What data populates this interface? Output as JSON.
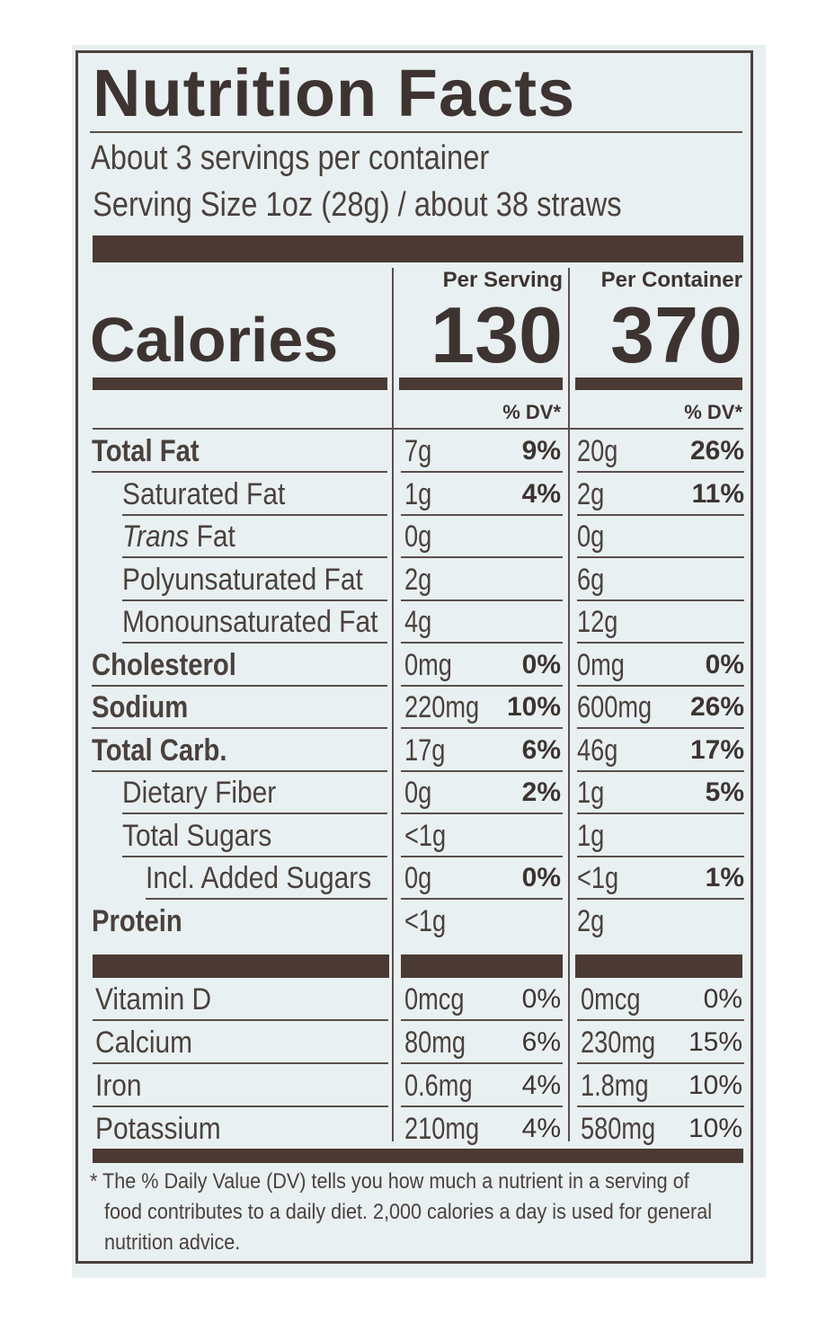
{
  "title": "Nutrition Facts",
  "servings_per_container": "About 3 servings per container",
  "serving_size": "Serving Size 1oz (28g) / about 38 straws",
  "columns": {
    "per_serving": "Per Serving",
    "per_container": "Per Container"
  },
  "calories": {
    "label": "Calories",
    "per_serving": "130",
    "per_container": "370"
  },
  "dv_header": "% DV*",
  "nutrients": [
    {
      "name": "Total Fat",
      "bold": true,
      "serv_amt": "7g",
      "serv_dv": "9%",
      "cont_amt": "20g",
      "cont_dv": "26%"
    },
    {
      "name": "Saturated Fat",
      "serv_amt": "1g",
      "serv_dv": "4%",
      "cont_amt": "2g",
      "cont_dv": "11%"
    },
    {
      "name": "Trans",
      "name_suffix": " Fat",
      "serv_amt": "0g",
      "serv_dv": "",
      "cont_amt": "0g",
      "cont_dv": ""
    },
    {
      "name": "Polyunsaturated Fat",
      "serv_amt": "2g",
      "serv_dv": "",
      "cont_amt": "6g",
      "cont_dv": ""
    },
    {
      "name": "Monounsaturated Fat",
      "serv_amt": "4g",
      "serv_dv": "",
      "cont_amt": "12g",
      "cont_dv": ""
    },
    {
      "name": "Cholesterol",
      "bold": true,
      "serv_amt": "0mg",
      "serv_dv": "0%",
      "cont_amt": "0mg",
      "cont_dv": "0%"
    },
    {
      "name": "Sodium",
      "bold": true,
      "serv_amt": "220mg",
      "serv_dv": "10%",
      "cont_amt": "600mg",
      "cont_dv": "26%"
    },
    {
      "name": "Total Carb.",
      "bold": true,
      "serv_amt": "17g",
      "serv_dv": "6%",
      "cont_amt": "46g",
      "cont_dv": "17%"
    },
    {
      "name": "Dietary Fiber",
      "serv_amt": "0g",
      "serv_dv": "2%",
      "cont_amt": "1g",
      "cont_dv": "5%"
    },
    {
      "name": "Total Sugars",
      "serv_amt": "<1g",
      "serv_dv": "",
      "cont_amt": "1g",
      "cont_dv": ""
    },
    {
      "name": "Incl. Added Sugars",
      "serv_amt": "0g",
      "serv_dv": "0%",
      "cont_amt": "<1g",
      "cont_dv": "1%"
    },
    {
      "name": "Protein",
      "bold": true,
      "serv_amt": "<1g",
      "serv_dv": "",
      "cont_amt": "2g",
      "cont_dv": ""
    }
  ],
  "vitamins": [
    {
      "name": "Vitamin D",
      "serv_amt": "0mcg",
      "serv_dv": "0%",
      "cont_amt": "0mcg",
      "cont_dv": "0%"
    },
    {
      "name": "Calcium",
      "serv_amt": "80mg",
      "serv_dv": "6%",
      "cont_amt": "230mg",
      "cont_dv": "15%"
    },
    {
      "name": "Iron",
      "serv_amt": "0.6mg",
      "serv_dv": "4%",
      "cont_amt": "1.8mg",
      "cont_dv": "10%"
    },
    {
      "name": "Potassium",
      "serv_amt": "210mg",
      "serv_dv": "4%",
      "cont_amt": "580mg",
      "cont_dv": "10%"
    }
  ],
  "footnote": {
    "line1": "* The % Daily Value (DV) tells you how much a nutrient in a serving of",
    "line2": "food contributes to a daily diet. 2,000 calories a day is used for general",
    "line3": "nutrition advice."
  }
}
